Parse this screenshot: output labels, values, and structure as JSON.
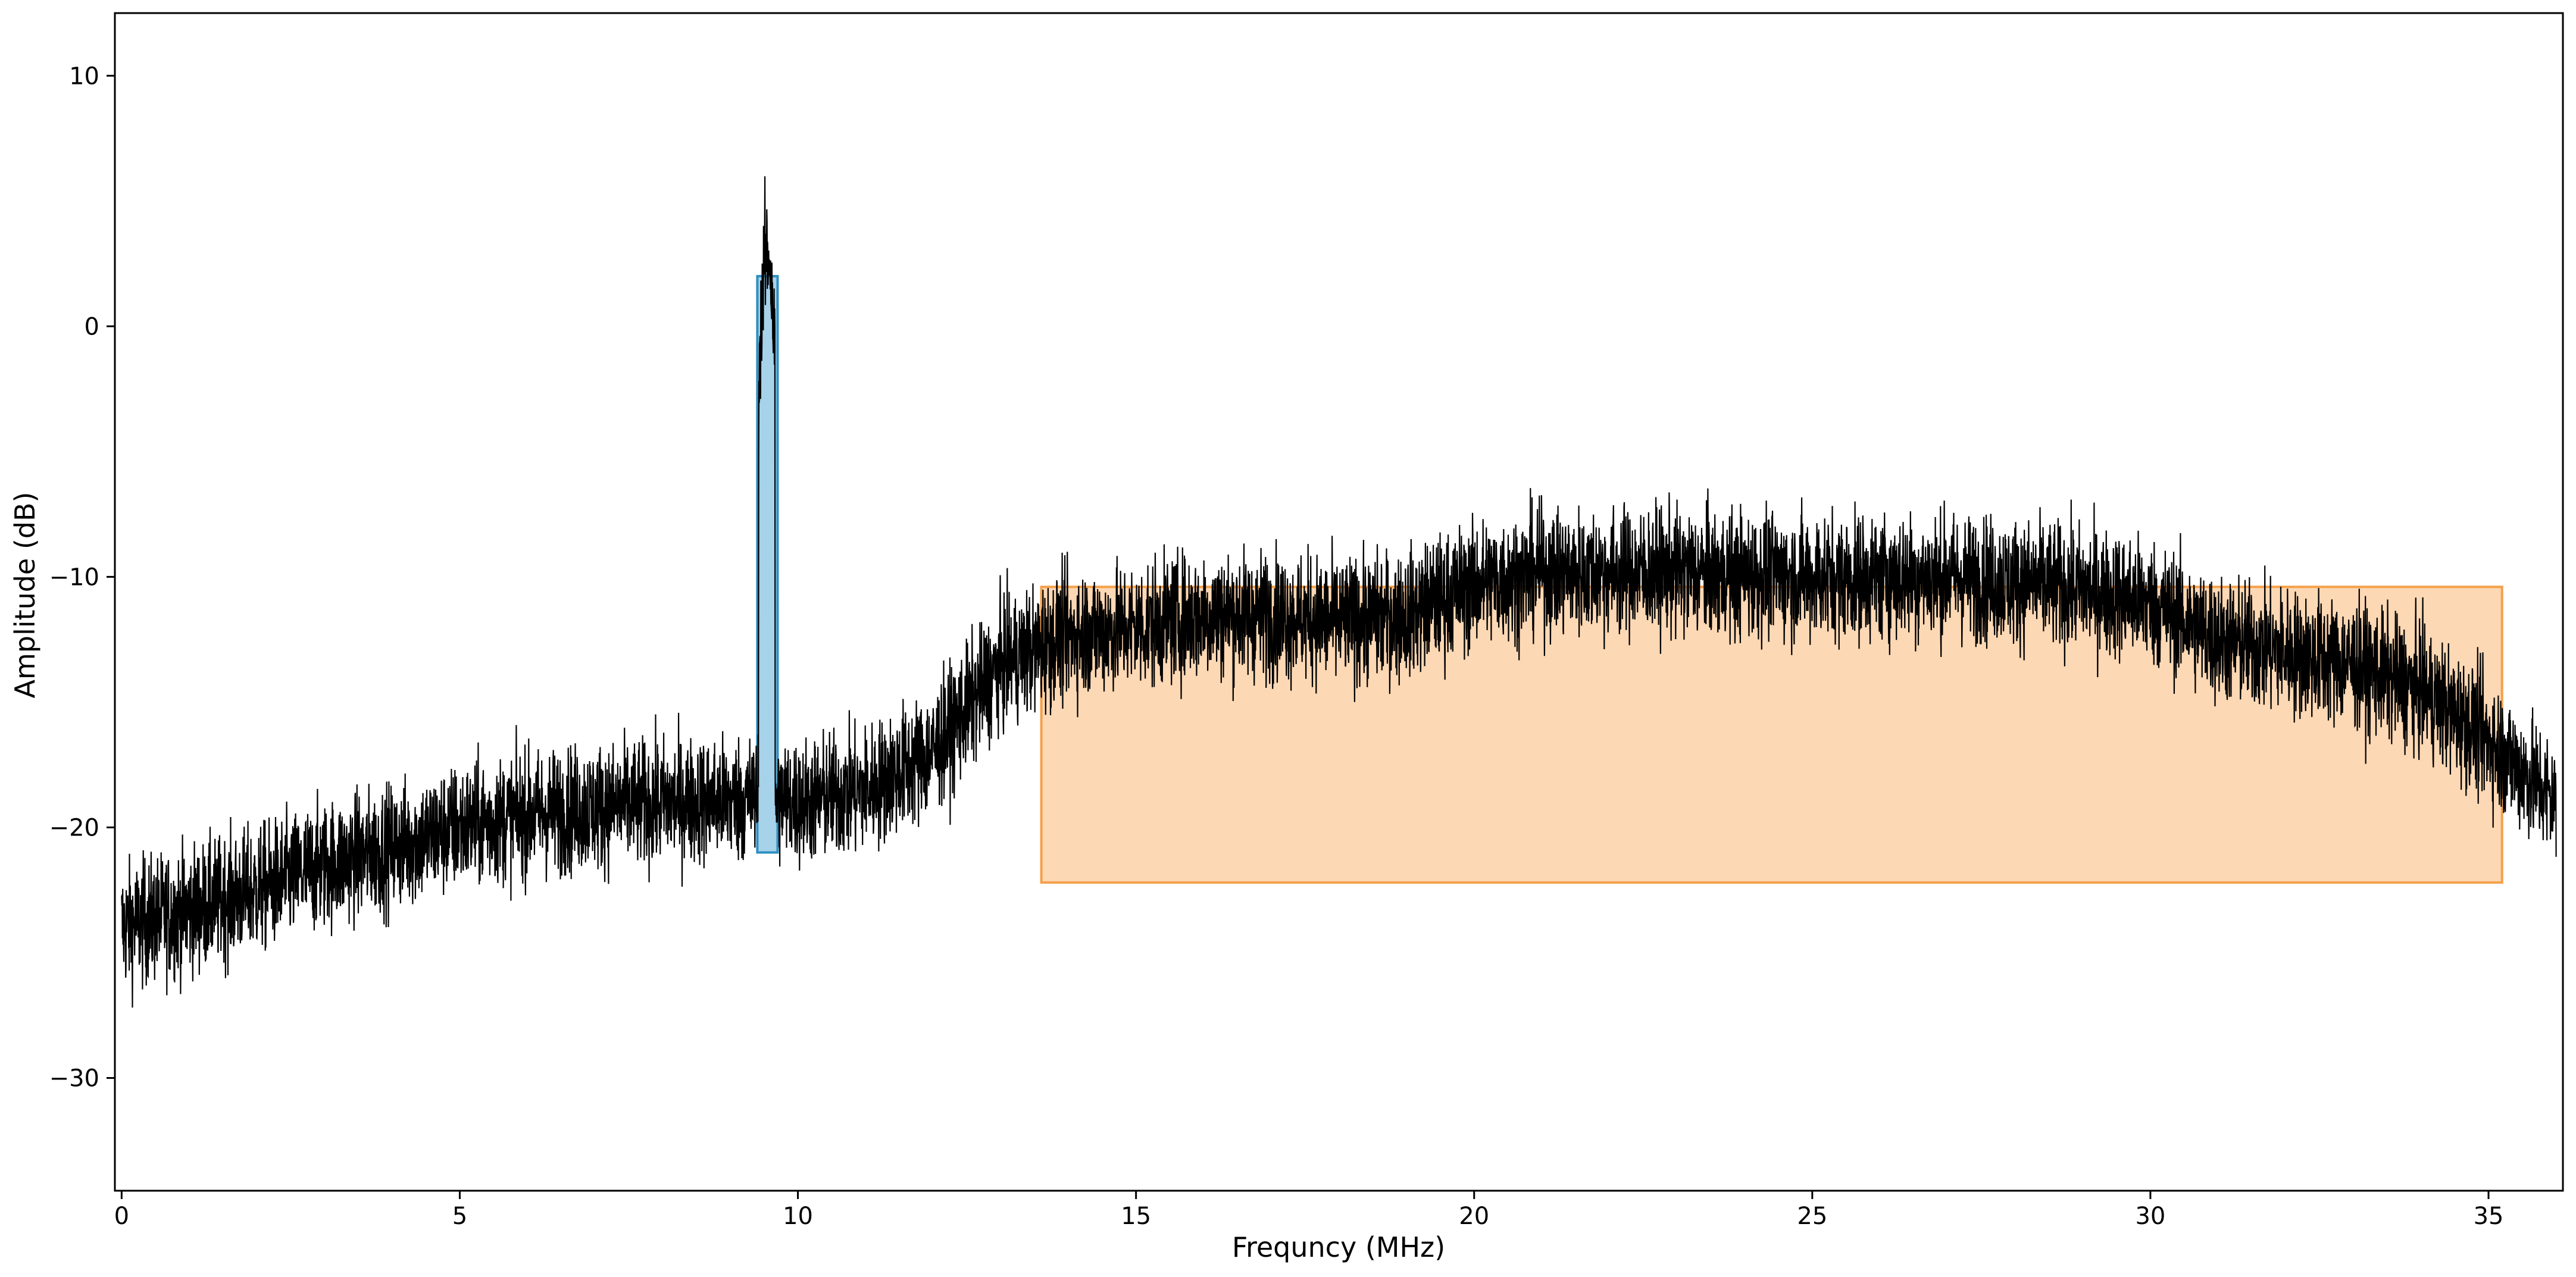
{
  "chart_data": {
    "type": "line",
    "title": "",
    "xlabel": "Frequncy (MHz)",
    "ylabel": "Amplitude (dB)",
    "xlim": [
      -0.1,
      36.1
    ],
    "ylim": [
      -34.5,
      12.5
    ],
    "xticks": [
      0,
      5,
      10,
      15,
      20,
      25,
      30,
      35
    ],
    "yticks": [
      -30,
      -20,
      -10,
      0,
      10
    ],
    "grid": false,
    "series": [
      {
        "color": "#000000",
        "profile_x": [
          0,
          1,
          2,
          3,
          4,
          5,
          6,
          7,
          8,
          9,
          9.4,
          10,
          11,
          12,
          13,
          14,
          15,
          16,
          17,
          18,
          19,
          20,
          21,
          22,
          23,
          24,
          25,
          26,
          27,
          28,
          29,
          30,
          31,
          32,
          33,
          34,
          35,
          36
        ],
        "profile_y": [
          -24,
          -23.3,
          -22.5,
          -21.5,
          -20.8,
          -20,
          -19.5,
          -19.2,
          -19,
          -18.9,
          -18.8,
          -19,
          -18.5,
          -17,
          -13.5,
          -12.3,
          -12,
          -11.5,
          -11.5,
          -11.8,
          -11.5,
          -10.3,
          -9.8,
          -9.8,
          -9.8,
          -9.9,
          -10,
          -10,
          -10,
          -10.2,
          -10.5,
          -11,
          -12.5,
          -13,
          -13.5,
          -14.5,
          -16.5,
          -19
        ],
        "peak": {
          "x": [
            9.42,
            9.5,
            9.58,
            9.66
          ],
          "y": [
            -2,
            2.5,
            3,
            -1
          ]
        }
      }
    ],
    "regions": [
      {
        "color": "#a6d2ea",
        "edge_color": "#2f8fc2",
        "x": [
          9.4,
          9.7
        ],
        "y": [
          -21,
          2
        ]
      },
      {
        "color": "#fcd8b4",
        "edge_color": "#f5a04a",
        "x": [
          13.6,
          35.2
        ],
        "y": [
          -22.2,
          -10.4
        ]
      }
    ]
  }
}
